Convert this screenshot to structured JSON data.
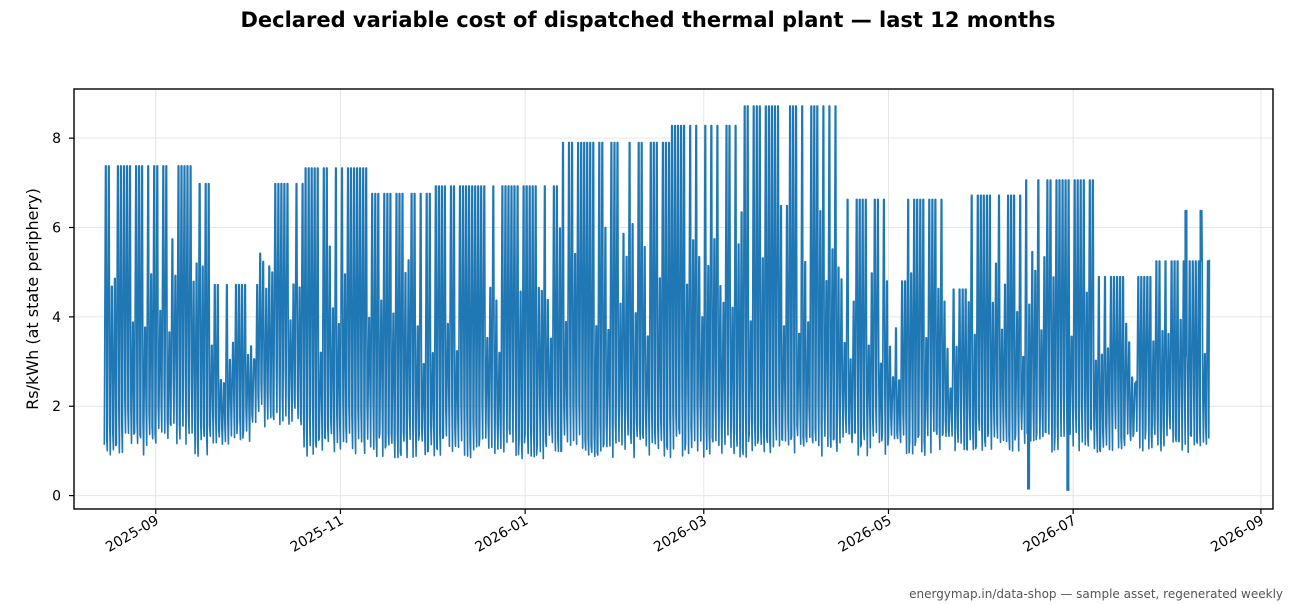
{
  "title": "Declared variable cost of dispatched thermal plant — last 12 months",
  "footer": "energymap.in/data-shop — sample asset, regenerated weekly",
  "colors": {
    "series": "#1f77b4",
    "grid": "#e6e6e6",
    "axis": "#000000"
  },
  "chart_data": {
    "type": "line",
    "title": "Declared variable cost of dispatched thermal plant — last 12 months",
    "xlabel": "",
    "ylabel": "Rs/kWh (at state periphery)",
    "x_type": "date",
    "xlim": [
      "2025-08-05",
      "2026-09-05"
    ],
    "ylim": [
      -0.3,
      9.1
    ],
    "x_ticks": [
      "2025-09",
      "2025-11",
      "2026-01",
      "2026-03",
      "2026-05",
      "2026-07",
      "2026-09"
    ],
    "y_ticks": [
      0,
      2,
      4,
      6,
      8
    ],
    "grid": true,
    "legend": "none",
    "series": [
      {
        "name": "",
        "description": "dense daily oscillation between low and high declared cost",
        "x_range": [
          "2025-08-15",
          "2026-08-15"
        ],
        "segments": [
          {
            "start": "2025-08-15",
            "end": "2025-08-30",
            "low": 0.87,
            "high": 7.38
          },
          {
            "start": "2025-08-30",
            "end": "2025-09-14",
            "low": 1.15,
            "high": 7.38
          },
          {
            "start": "2025-09-14",
            "end": "2025-09-20",
            "low": 0.87,
            "high": 6.98
          },
          {
            "start": "2025-09-20",
            "end": "2025-10-05",
            "low": 1.15,
            "high": 4.72
          },
          {
            "start": "2025-10-05",
            "end": "2025-10-20",
            "low": 1.5,
            "high": 6.98
          },
          {
            "start": "2025-10-20",
            "end": "2025-11-10",
            "low": 0.87,
            "high": 7.33
          },
          {
            "start": "2025-11-10",
            "end": "2025-12-01",
            "low": 0.85,
            "high": 6.76
          },
          {
            "start": "2025-12-01",
            "end": "2025-12-31",
            "low": 0.85,
            "high": 6.93
          },
          {
            "start": "2025-12-31",
            "end": "2026-01-12",
            "low": 0.82,
            "high": 6.93
          },
          {
            "start": "2026-01-12",
            "end": "2026-02-06",
            "low": 0.82,
            "high": 7.9
          },
          {
            "start": "2026-02-06",
            "end": "2026-02-18",
            "low": 0.82,
            "high": 7.9
          },
          {
            "start": "2026-02-18",
            "end": "2026-02-27",
            "low": 0.85,
            "high": 8.28
          },
          {
            "start": "2026-02-27",
            "end": "2026-03-14",
            "low": 0.85,
            "high": 8.28
          },
          {
            "start": "2026-03-14",
            "end": "2026-04-15",
            "low": 0.85,
            "high": 8.72
          },
          {
            "start": "2026-04-15",
            "end": "2026-04-30",
            "low": 0.87,
            "high": 6.63
          },
          {
            "start": "2026-04-30",
            "end": "2026-05-07",
            "low": 0.87,
            "high": 4.8
          },
          {
            "start": "2026-05-07",
            "end": "2026-05-20",
            "low": 0.9,
            "high": 6.63
          },
          {
            "start": "2026-05-20",
            "end": "2026-05-27",
            "low": 0.9,
            "high": 4.62
          },
          {
            "start": "2026-05-27",
            "end": "2026-06-14",
            "low": 0.93,
            "high": 6.72
          },
          {
            "start": "2026-06-14",
            "end": "2026-07-08",
            "low": 0.97,
            "high": 7.06
          },
          {
            "start": "2026-07-08",
            "end": "2026-07-28",
            "low": 0.97,
            "high": 4.9
          },
          {
            "start": "2026-07-28",
            "end": "2026-08-15",
            "low": 0.97,
            "high": 5.25
          }
        ],
        "spikes": [
          {
            "x": "2026-08-07",
            "y": 6.38
          },
          {
            "x": "2026-08-12",
            "y": 6.38
          },
          {
            "x": "2026-06-16",
            "y": 0.15
          },
          {
            "x": "2026-06-29",
            "y": 0.12
          }
        ],
        "end_value": 5.28
      }
    ]
  }
}
